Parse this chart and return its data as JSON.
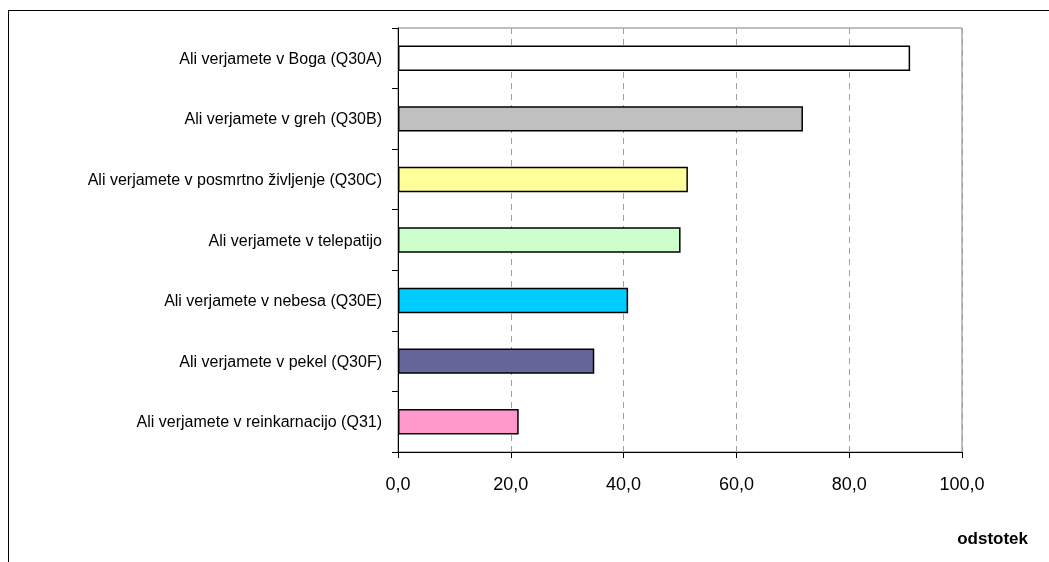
{
  "chart_data": {
    "type": "bar",
    "orientation": "horizontal",
    "categories": [
      "Ali verjamete v Boga (Q30A)",
      "Ali verjamete v greh (Q30B)",
      "Ali verjamete v posmrtno življenje (Q30C)",
      "Ali verjamete v telepatijo",
      "Ali verjamete v nebesa (Q30E)",
      "Ali verjamete v pekel (Q30F)",
      "Ali verjamete v reinkarnacijo (Q31)"
    ],
    "values": [
      90.8,
      71.8,
      51.4,
      50.1,
      40.8,
      34.8,
      21.4
    ],
    "colors": [
      "#ffffff",
      "#c0c0c0",
      "#ffff99",
      "#ccffcc",
      "#00ccff",
      "#666699",
      "#ff99cc"
    ],
    "xlabel": "odstotek",
    "xlim": [
      0,
      100
    ],
    "xticks": [
      {
        "value": 0,
        "label": "0,0"
      },
      {
        "value": 20,
        "label": "20,0"
      },
      {
        "value": 40,
        "label": "40,0"
      },
      {
        "value": 60,
        "label": "60,0"
      },
      {
        "value": 80,
        "label": "80,0"
      },
      {
        "value": 100,
        "label": "100,0"
      }
    ],
    "grid": "x"
  }
}
